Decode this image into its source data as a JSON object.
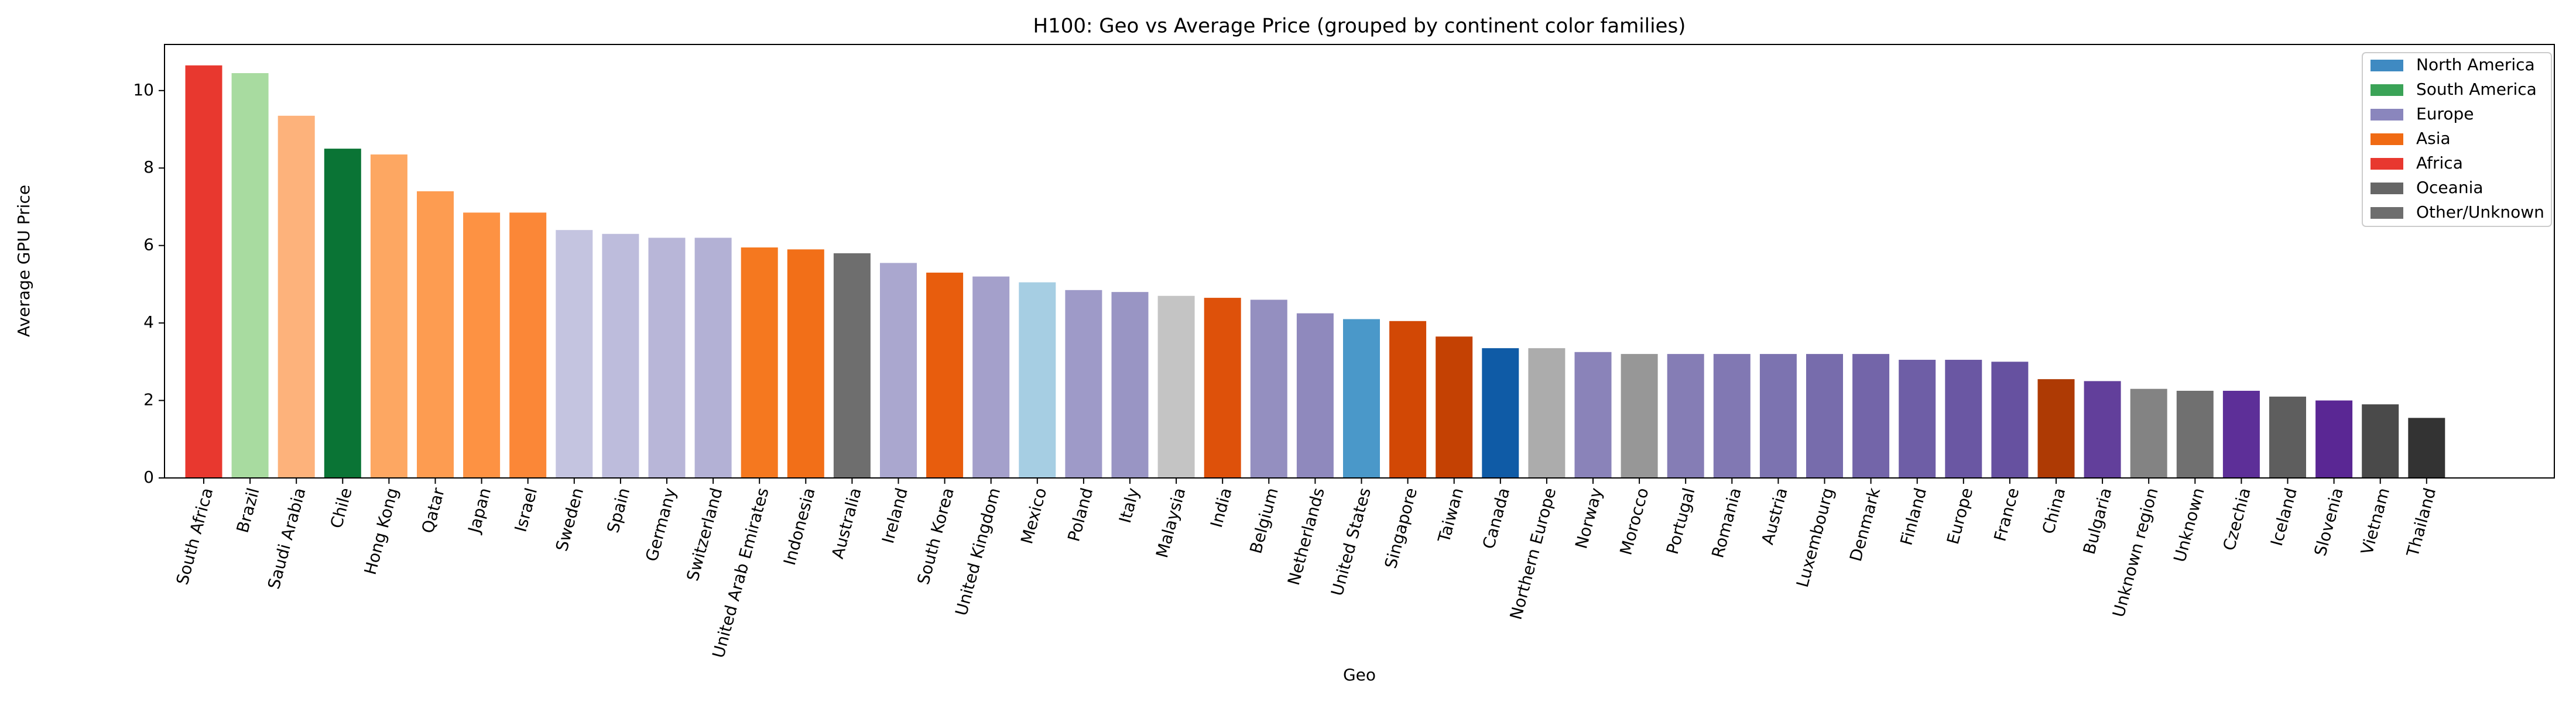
{
  "chart_data": {
    "type": "bar",
    "title": "H100: Geo vs Average Price (grouped by continent color families)",
    "x_label": "Geo",
    "y_label": "Average GPU Price",
    "categories": [
      "South Africa",
      "Brazil",
      "Saudi Arabia",
      "Chile",
      "Hong Kong",
      "Qatar",
      "Japan",
      "Israel",
      "Sweden",
      "Spain",
      "Germany",
      "Switzerland",
      "United Arab Emirates",
      "Indonesia",
      "Australia",
      "Ireland",
      "South Korea",
      "United Kingdom",
      "Mexico",
      "Poland",
      "Italy",
      "Malaysia",
      "India",
      "Belgium",
      "Netherlands",
      "United States",
      "Singapore",
      "Taiwan",
      "Canada",
      "Northern Europe",
      "Norway",
      "Morocco",
      "Portugal",
      "Romania",
      "Austria",
      "Luxembourg",
      "Denmark",
      "Finland",
      "Europe",
      "France",
      "China",
      "Bulgaria",
      "Unknown region",
      "Unknown",
      "Czechia",
      "Iceland",
      "Slovenia",
      "Vietnam",
      "Thailand"
    ],
    "values": [
      10.65,
      10.45,
      9.35,
      8.5,
      8.35,
      7.4,
      6.85,
      6.85,
      6.4,
      6.3,
      6.2,
      6.2,
      5.95,
      5.9,
      5.8,
      5.55,
      5.3,
      5.2,
      5.05,
      4.85,
      4.8,
      4.7,
      4.65,
      4.6,
      4.25,
      4.1,
      4.05,
      3.65,
      3.35,
      3.35,
      3.25,
      3.2,
      3.2,
      3.2,
      3.2,
      3.2,
      3.2,
      3.05,
      3.05,
      3.0,
      2.55,
      2.5,
      2.3,
      2.25,
      2.25,
      2.1,
      2.0,
      1.9,
      1.55
    ],
    "colors": [
      "#e8382f",
      "#a8dba0",
      "#fdb27b",
      "#0a7435",
      "#fda762",
      "#fd9c51",
      "#fd9243",
      "#fb8737",
      "#c4c4e0",
      "#bdbcdc",
      "#b8b6d8",
      "#b3b1d5",
      "#f5781f",
      "#f26f18",
      "#6e6e6e",
      "#aaa7cf",
      "#e85d0d",
      "#a4a0cb",
      "#a6cee3",
      "#9e9ac8",
      "#9995c4",
      "#c4c4c4",
      "#de510a",
      "#948fc0",
      "#8f89bd",
      "#4a98c9",
      "#d24805",
      "#c44103",
      "#0f5ba6",
      "#acacac",
      "#8a83b9",
      "#979797",
      "#857db5",
      "#8178b3",
      "#7c73b0",
      "#776cac",
      "#7365a9",
      "#6e5ea6",
      "#6a57a3",
      "#6651a0",
      "#ae3a04",
      "#623f9b",
      "#838383",
      "#707070",
      "#5d2f98",
      "#5e5e5e",
      "#5a2794",
      "#4a4a4a",
      "#333333"
    ],
    "legend": [
      {
        "name": "North America",
        "color": "#3f8ac2"
      },
      {
        "name": "South America",
        "color": "#3aa357"
      },
      {
        "name": "Europe",
        "color": "#8a86bd"
      },
      {
        "name": "Asia",
        "color": "#f06a13"
      },
      {
        "name": "Africa",
        "color": "#e8382f"
      },
      {
        "name": "Oceania",
        "color": "#666666"
      },
      {
        "name": "Other/Unknown",
        "color": "#6e6e6e"
      }
    ],
    "legend_position": "upper right",
    "ylim": [
      0,
      11.19
    ],
    "yticks": [
      0,
      2,
      4,
      6,
      8,
      10
    ],
    "grid": false
  }
}
